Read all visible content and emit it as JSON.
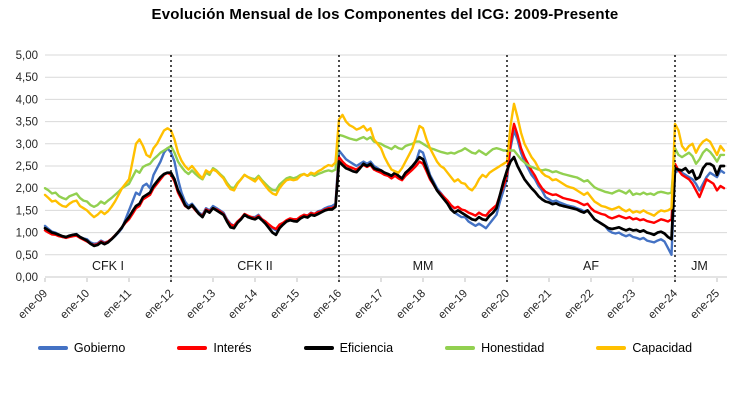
{
  "chart_data": {
    "type": "line",
    "title": "Evolución Mensual de los Componentes del ICG: 2009-Presente",
    "x_description": "monthly values, ene-09 through mar-25 (195 points per series)",
    "x_tick_labels": [
      "ene-09",
      "ene-10",
      "ene-11",
      "ene-12",
      "ene-13",
      "ene-14",
      "ene-15",
      "ene-16",
      "ene-17",
      "ene-18",
      "ene-19",
      "ene-20",
      "ene-21",
      "ene-22",
      "ene-23",
      "ene-24",
      "ene-25"
    ],
    "y_tick_labels": [
      "5,00",
      "4,50",
      "4,00",
      "3,50",
      "3,00",
      "2,50",
      "2,00",
      "1,50",
      "1,00",
      "0,50",
      "0,00"
    ],
    "ylim": [
      0,
      5
    ],
    "grid": true,
    "legend_position": "bottom",
    "periods": [
      {
        "label": "CFK I",
        "from_month": 0,
        "to_month": 36
      },
      {
        "label": "CFK II",
        "from_month": 36,
        "to_month": 84
      },
      {
        "label": "MM",
        "from_month": 84,
        "to_month": 132
      },
      {
        "label": "AF",
        "from_month": 132,
        "to_month": 180
      },
      {
        "label": "JM",
        "from_month": 180,
        "to_month": 194
      }
    ],
    "series": [
      {
        "name": "Gobierno",
        "color": "#4472C4",
        "values": [
          1.15,
          1.08,
          1.02,
          1.0,
          0.95,
          0.9,
          0.88,
          0.92,
          0.95,
          0.97,
          0.9,
          0.87,
          0.85,
          0.78,
          0.75,
          0.76,
          0.82,
          0.78,
          0.8,
          0.85,
          0.92,
          1.0,
          1.1,
          1.3,
          1.5,
          1.7,
          1.9,
          1.85,
          2.05,
          2.1,
          2.0,
          2.3,
          2.45,
          2.6,
          2.8,
          2.9,
          2.8,
          2.6,
          2.2,
          1.9,
          1.7,
          1.6,
          1.65,
          1.55,
          1.45,
          1.4,
          1.55,
          1.5,
          1.6,
          1.55,
          1.5,
          1.45,
          1.3,
          1.2,
          1.15,
          1.25,
          1.3,
          1.4,
          1.35,
          1.35,
          1.35,
          1.4,
          1.3,
          1.25,
          1.15,
          1.1,
          1.05,
          1.15,
          1.2,
          1.25,
          1.3,
          1.3,
          1.3,
          1.35,
          1.4,
          1.38,
          1.45,
          1.42,
          1.48,
          1.5,
          1.55,
          1.58,
          1.6,
          1.65,
          2.85,
          2.75,
          2.65,
          2.6,
          2.55,
          2.5,
          2.55,
          2.6,
          2.55,
          2.6,
          2.5,
          2.45,
          2.4,
          2.35,
          2.3,
          2.25,
          2.3,
          2.25,
          2.2,
          2.3,
          2.4,
          2.45,
          2.6,
          2.85,
          2.8,
          2.55,
          2.3,
          2.15,
          2.0,
          1.9,
          1.8,
          1.7,
          1.55,
          1.45,
          1.4,
          1.35,
          1.35,
          1.25,
          1.2,
          1.15,
          1.2,
          1.15,
          1.1,
          1.2,
          1.3,
          1.4,
          1.7,
          1.95,
          2.2,
          2.9,
          3.3,
          3.1,
          2.8,
          2.6,
          2.45,
          2.3,
          2.2,
          2.05,
          1.95,
          1.8,
          1.75,
          1.7,
          1.72,
          1.68,
          1.65,
          1.62,
          1.6,
          1.58,
          1.55,
          1.52,
          1.48,
          1.5,
          1.4,
          1.3,
          1.25,
          1.2,
          1.15,
          1.05,
          1.0,
          0.98,
          1.0,
          0.95,
          0.92,
          0.95,
          0.9,
          0.88,
          0.85,
          0.88,
          0.82,
          0.8,
          0.78,
          0.82,
          0.85,
          0.8,
          0.65,
          0.5,
          2.35,
          2.4,
          2.35,
          2.3,
          2.25,
          2.2,
          2.1,
          1.95,
          2.1,
          2.25,
          2.35,
          2.3,
          2.25,
          2.4,
          2.35
        ]
      },
      {
        "name": "Interés",
        "color": "#FF0000",
        "values": [
          1.05,
          1.0,
          0.96,
          0.95,
          0.92,
          0.9,
          0.88,
          0.9,
          0.92,
          0.93,
          0.88,
          0.84,
          0.8,
          0.75,
          0.72,
          0.74,
          0.8,
          0.76,
          0.8,
          0.86,
          0.94,
          1.02,
          1.12,
          1.22,
          1.3,
          1.42,
          1.55,
          1.6,
          1.75,
          1.8,
          1.85,
          2.0,
          2.1,
          2.2,
          2.3,
          2.35,
          2.3,
          2.15,
          1.9,
          1.75,
          1.6,
          1.55,
          1.6,
          1.5,
          1.42,
          1.38,
          1.52,
          1.48,
          1.55,
          1.52,
          1.48,
          1.42,
          1.28,
          1.18,
          1.15,
          1.25,
          1.32,
          1.42,
          1.38,
          1.35,
          1.32,
          1.38,
          1.3,
          1.25,
          1.18,
          1.12,
          1.08,
          1.18,
          1.22,
          1.28,
          1.32,
          1.3,
          1.3,
          1.36,
          1.4,
          1.38,
          1.44,
          1.42,
          1.46,
          1.48,
          1.52,
          1.55,
          1.55,
          1.6,
          2.7,
          2.6,
          2.52,
          2.48,
          2.45,
          2.42,
          2.48,
          2.52,
          2.48,
          2.52,
          2.42,
          2.38,
          2.35,
          2.3,
          2.28,
          2.22,
          2.28,
          2.22,
          2.18,
          2.28,
          2.35,
          2.42,
          2.5,
          2.6,
          2.55,
          2.38,
          2.2,
          2.08,
          1.95,
          1.88,
          1.8,
          1.72,
          1.62,
          1.55,
          1.58,
          1.52,
          1.5,
          1.45,
          1.42,
          1.38,
          1.45,
          1.4,
          1.38,
          1.48,
          1.55,
          1.62,
          1.85,
          2.05,
          2.3,
          3.0,
          3.45,
          3.2,
          2.9,
          2.7,
          2.55,
          2.4,
          2.28,
          2.12,
          2.0,
          1.92,
          1.88,
          1.85,
          1.86,
          1.82,
          1.78,
          1.76,
          1.74,
          1.72,
          1.7,
          1.66,
          1.62,
          1.65,
          1.55,
          1.48,
          1.45,
          1.42,
          1.4,
          1.35,
          1.32,
          1.35,
          1.38,
          1.35,
          1.32,
          1.35,
          1.3,
          1.32,
          1.28,
          1.3,
          1.26,
          1.24,
          1.22,
          1.26,
          1.3,
          1.28,
          1.25,
          1.3,
          2.55,
          2.4,
          2.3,
          2.25,
          2.2,
          2.1,
          1.95,
          1.8,
          2.0,
          2.2,
          2.15,
          2.1,
          1.95,
          2.05,
          2.0
        ]
      },
      {
        "name": "Eficiencia",
        "color": "#000000",
        "values": [
          1.1,
          1.05,
          1.0,
          0.98,
          0.95,
          0.92,
          0.9,
          0.93,
          0.95,
          0.96,
          0.9,
          0.86,
          0.82,
          0.75,
          0.7,
          0.72,
          0.78,
          0.74,
          0.78,
          0.85,
          0.93,
          1.02,
          1.12,
          1.25,
          1.35,
          1.48,
          1.6,
          1.65,
          1.8,
          1.85,
          1.9,
          2.05,
          2.15,
          2.25,
          2.32,
          2.35,
          2.35,
          2.2,
          1.95,
          1.8,
          1.62,
          1.55,
          1.62,
          1.52,
          1.42,
          1.35,
          1.5,
          1.45,
          1.55,
          1.5,
          1.45,
          1.4,
          1.25,
          1.12,
          1.1,
          1.22,
          1.3,
          1.4,
          1.35,
          1.32,
          1.3,
          1.35,
          1.28,
          1.2,
          1.1,
          1.0,
          0.95,
          1.1,
          1.18,
          1.25,
          1.28,
          1.26,
          1.25,
          1.32,
          1.36,
          1.34,
          1.4,
          1.38,
          1.42,
          1.46,
          1.5,
          1.52,
          1.52,
          1.58,
          2.6,
          2.52,
          2.45,
          2.42,
          2.38,
          2.36,
          2.45,
          2.55,
          2.5,
          2.55,
          2.45,
          2.42,
          2.4,
          2.35,
          2.32,
          2.28,
          2.35,
          2.28,
          2.22,
          2.35,
          2.42,
          2.5,
          2.6,
          2.7,
          2.65,
          2.45,
          2.25,
          2.1,
          1.95,
          1.85,
          1.75,
          1.65,
          1.52,
          1.45,
          1.5,
          1.45,
          1.4,
          1.35,
          1.3,
          1.28,
          1.35,
          1.3,
          1.28,
          1.38,
          1.45,
          1.55,
          1.85,
          2.15,
          2.4,
          2.6,
          2.7,
          2.5,
          2.35,
          2.2,
          2.1,
          2.0,
          1.92,
          1.82,
          1.75,
          1.7,
          1.68,
          1.64,
          1.66,
          1.62,
          1.6,
          1.58,
          1.56,
          1.54,
          1.52,
          1.48,
          1.45,
          1.5,
          1.4,
          1.3,
          1.25,
          1.2,
          1.15,
          1.1,
          1.08,
          1.1,
          1.12,
          1.08,
          1.05,
          1.08,
          1.05,
          1.06,
          1.02,
          1.05,
          1.0,
          0.98,
          0.95,
          1.0,
          1.02,
          0.98,
          0.9,
          0.85,
          2.45,
          2.42,
          2.4,
          2.45,
          2.35,
          2.4,
          2.2,
          2.25,
          2.45,
          2.55,
          2.55,
          2.5,
          2.3,
          2.5,
          2.5
        ]
      },
      {
        "name": "Honestidad",
        "color": "#92D050",
        "values": [
          2.0,
          1.95,
          1.88,
          1.9,
          1.82,
          1.78,
          1.75,
          1.82,
          1.85,
          1.88,
          1.78,
          1.72,
          1.7,
          1.62,
          1.58,
          1.62,
          1.7,
          1.65,
          1.72,
          1.78,
          1.85,
          1.92,
          2.0,
          2.05,
          2.1,
          2.25,
          2.4,
          2.35,
          2.48,
          2.52,
          2.55,
          2.65,
          2.72,
          2.8,
          2.85,
          2.9,
          2.95,
          2.8,
          2.6,
          2.48,
          2.38,
          2.32,
          2.4,
          2.32,
          2.25,
          2.2,
          2.35,
          2.3,
          2.45,
          2.4,
          2.32,
          2.25,
          2.12,
          2.02,
          2.0,
          2.12,
          2.2,
          2.3,
          2.25,
          2.22,
          2.2,
          2.28,
          2.18,
          2.1,
          2.02,
          1.96,
          1.95,
          2.08,
          2.15,
          2.22,
          2.25,
          2.22,
          2.25,
          2.3,
          2.32,
          2.28,
          2.32,
          2.28,
          2.32,
          2.35,
          2.38,
          2.4,
          2.38,
          2.42,
          3.2,
          3.18,
          3.15,
          3.12,
          3.1,
          3.08,
          3.12,
          3.15,
          3.1,
          3.15,
          3.05,
          3.02,
          3.0,
          2.95,
          2.92,
          2.88,
          2.95,
          2.9,
          2.88,
          2.95,
          2.98,
          3.0,
          3.05,
          3.05,
          3.0,
          2.95,
          2.9,
          2.88,
          2.85,
          2.82,
          2.8,
          2.78,
          2.8,
          2.78,
          2.82,
          2.85,
          2.9,
          2.85,
          2.8,
          2.78,
          2.85,
          2.8,
          2.75,
          2.82,
          2.88,
          2.9,
          2.88,
          2.85,
          2.85,
          2.85,
          2.85,
          2.75,
          2.65,
          2.58,
          2.52,
          2.48,
          2.45,
          2.42,
          2.4,
          2.42,
          2.4,
          2.36,
          2.38,
          2.35,
          2.32,
          2.3,
          2.28,
          2.26,
          2.24,
          2.2,
          2.15,
          2.18,
          2.1,
          2.02,
          1.98,
          1.95,
          1.92,
          1.9,
          1.88,
          1.92,
          1.95,
          1.92,
          1.88,
          1.95,
          1.85,
          1.88,
          1.86,
          1.9,
          1.86,
          1.88,
          1.85,
          1.9,
          1.92,
          1.9,
          1.88,
          1.9,
          2.9,
          2.75,
          2.7,
          2.75,
          2.8,
          2.72,
          2.55,
          2.65,
          2.8,
          2.88,
          2.82,
          2.72,
          2.6,
          2.75,
          2.75
        ]
      },
      {
        "name": "Capacidad",
        "color": "#FFC000",
        "values": [
          1.85,
          1.78,
          1.7,
          1.72,
          1.65,
          1.6,
          1.58,
          1.65,
          1.7,
          1.72,
          1.6,
          1.55,
          1.5,
          1.42,
          1.35,
          1.4,
          1.48,
          1.42,
          1.48,
          1.58,
          1.7,
          1.85,
          2.0,
          2.1,
          2.2,
          2.6,
          3.0,
          3.1,
          2.95,
          2.75,
          2.7,
          2.9,
          3.0,
          3.15,
          3.3,
          3.35,
          3.3,
          3.1,
          2.8,
          2.62,
          2.5,
          2.42,
          2.5,
          2.4,
          2.3,
          2.22,
          2.4,
          2.35,
          2.42,
          2.38,
          2.3,
          2.22,
          2.08,
          1.98,
          1.95,
          2.1,
          2.2,
          2.3,
          2.25,
          2.2,
          2.15,
          2.25,
          2.15,
          2.05,
          1.95,
          1.88,
          1.85,
          2.0,
          2.1,
          2.18,
          2.2,
          2.18,
          2.2,
          2.28,
          2.32,
          2.28,
          2.35,
          2.32,
          2.38,
          2.42,
          2.48,
          2.52,
          2.5,
          2.58,
          3.55,
          3.65,
          3.5,
          3.42,
          3.38,
          3.32,
          3.35,
          3.4,
          3.3,
          3.35,
          3.1,
          3.0,
          2.9,
          2.7,
          2.55,
          2.42,
          2.38,
          2.35,
          2.45,
          2.6,
          2.75,
          2.9,
          3.15,
          3.4,
          3.35,
          3.1,
          2.9,
          2.75,
          2.6,
          2.5,
          2.45,
          2.35,
          2.25,
          2.15,
          2.2,
          2.12,
          2.1,
          2.0,
          1.95,
          2.05,
          2.2,
          2.3,
          2.25,
          2.35,
          2.4,
          2.45,
          2.5,
          2.55,
          2.6,
          3.4,
          3.9,
          3.6,
          3.25,
          3.0,
          2.85,
          2.7,
          2.6,
          2.45,
          2.35,
          2.28,
          2.25,
          2.18,
          2.2,
          2.15,
          2.1,
          2.05,
          2.02,
          2.0,
          1.95,
          1.9,
          1.85,
          1.9,
          1.8,
          1.7,
          1.65,
          1.6,
          1.58,
          1.55,
          1.52,
          1.55,
          1.58,
          1.52,
          1.48,
          1.52,
          1.45,
          1.48,
          1.45,
          1.5,
          1.45,
          1.42,
          1.38,
          1.45,
          1.5,
          1.48,
          1.5,
          1.55,
          3.45,
          3.3,
          2.95,
          2.85,
          2.95,
          3.0,
          2.8,
          2.95,
          3.05,
          3.1,
          3.05,
          2.9,
          2.75,
          2.95,
          2.85
        ]
      }
    ],
    "colors": {
      "gridline": "#D9D9D9",
      "axis_text": "#262626",
      "divider": "#000000"
    }
  }
}
